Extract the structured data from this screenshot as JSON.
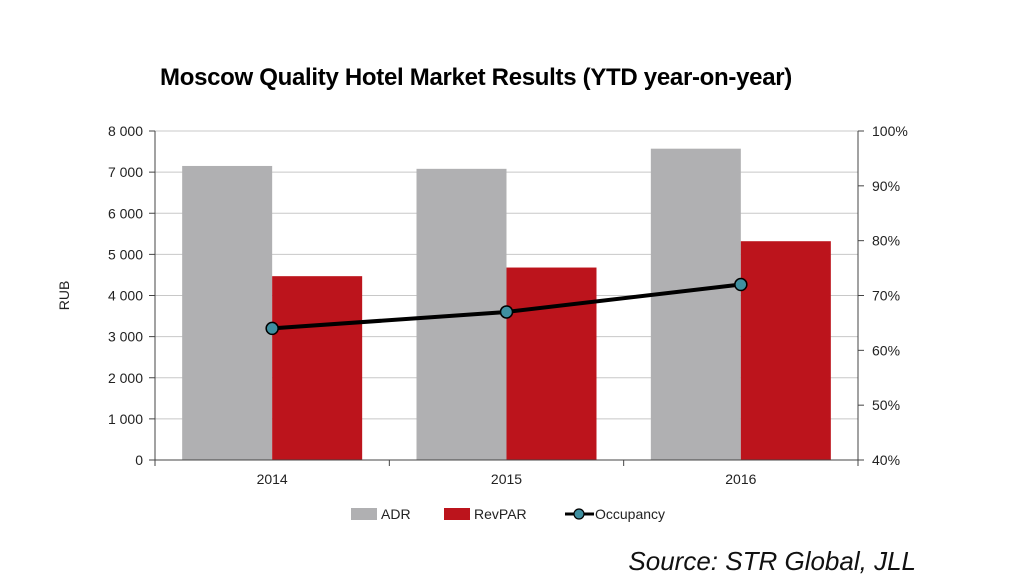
{
  "chart_data": {
    "type": "bar",
    "title": "Moscow Quality Hotel Market Results (YTD year-on-year)",
    "categories": [
      "2014",
      "2015",
      "2016"
    ],
    "ylabel": "RUB",
    "ylim": [
      0,
      8000
    ],
    "y_ticks": [
      "0",
      "1 000",
      "2 000",
      "3 000",
      "4 000",
      "5 000",
      "6 000",
      "7 000",
      "8 000"
    ],
    "y2lim": [
      0.4,
      1.0
    ],
    "y2_ticks": [
      "40%",
      "50%",
      "60%",
      "70%",
      "80%",
      "90%",
      "100%"
    ],
    "series": [
      {
        "name": "ADR",
        "type": "bar",
        "axis": "left",
        "color": "#b0b0b2",
        "values": [
          7150,
          7080,
          7570
        ]
      },
      {
        "name": "RevPAR",
        "type": "bar",
        "axis": "left",
        "color": "#bc141c",
        "values": [
          4470,
          4680,
          5320
        ]
      },
      {
        "name": "Occupancy",
        "type": "line",
        "axis": "right",
        "color": "#000000",
        "marker_color": "#3f8fa0",
        "values": [
          0.64,
          0.67,
          0.72
        ]
      }
    ],
    "grid": true,
    "legend_position": "bottom"
  },
  "source": "Source: STR Global, JLL"
}
